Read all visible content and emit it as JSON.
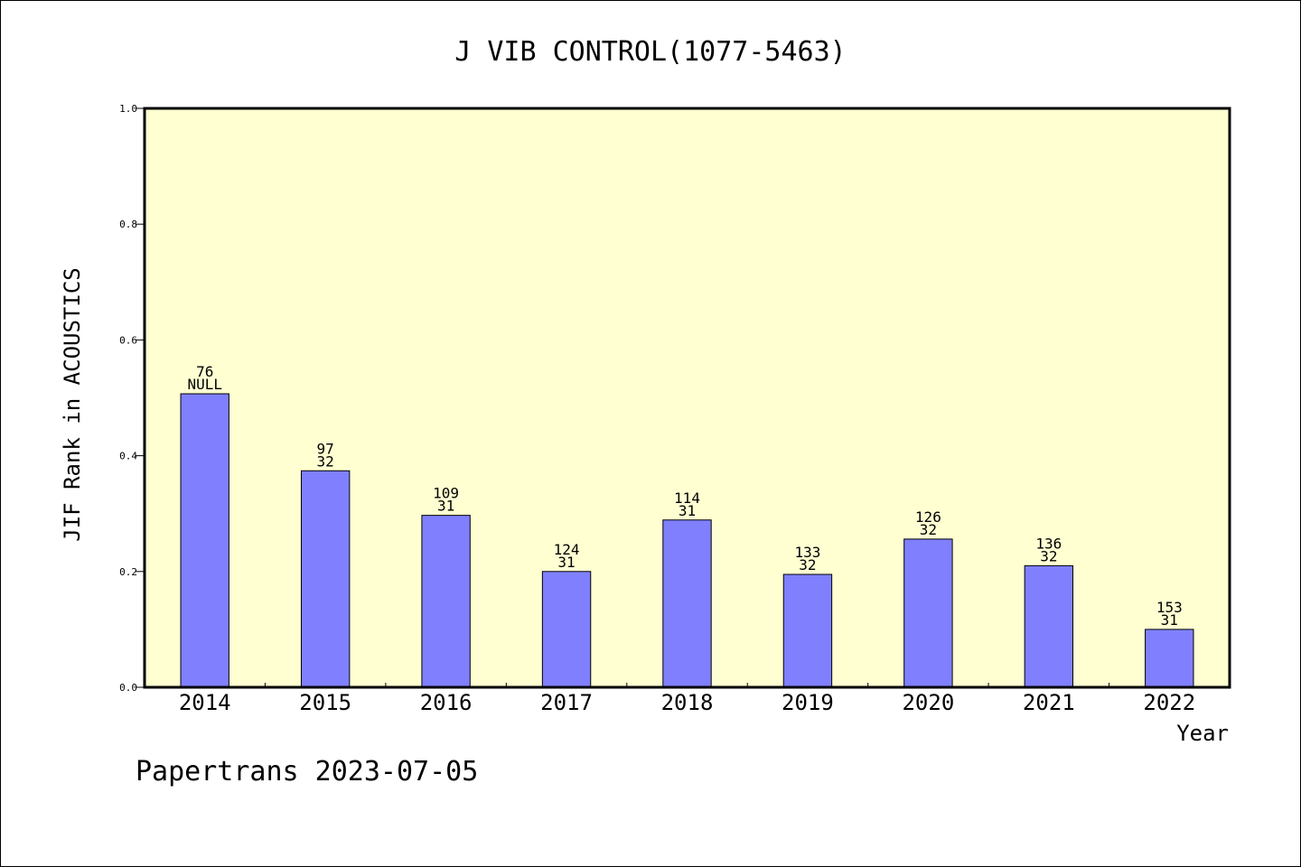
{
  "chart_data": {
    "type": "bar",
    "title": "J VIB CONTROL(1077-5463)",
    "xlabel": "Year",
    "ylabel": "JIF Rank in ACOUSTICS",
    "ylim": [
      0,
      1.0
    ],
    "yticks": [
      "0.0",
      "0.2",
      "0.4",
      "0.6",
      "0.8",
      "1.0"
    ],
    "categories": [
      "2014",
      "2015",
      "2016",
      "2017",
      "2018",
      "2019",
      "2020",
      "2021",
      "2022"
    ],
    "values": [
      0.507,
      0.374,
      0.297,
      0.2,
      0.289,
      0.195,
      0.256,
      0.21,
      0.1
    ],
    "rank_labels": [
      "76",
      "97",
      "109",
      "124",
      "114",
      "133",
      "126",
      "136",
      "153"
    ],
    "total_labels": [
      "NULL",
      "32",
      "31",
      "31",
      "31",
      "32",
      "32",
      "32",
      "31"
    ],
    "colors": {
      "plot_bg": "#ffffd2",
      "bar": "#8080ff"
    },
    "grid": false
  },
  "footer": "Papertrans 2023-07-05"
}
